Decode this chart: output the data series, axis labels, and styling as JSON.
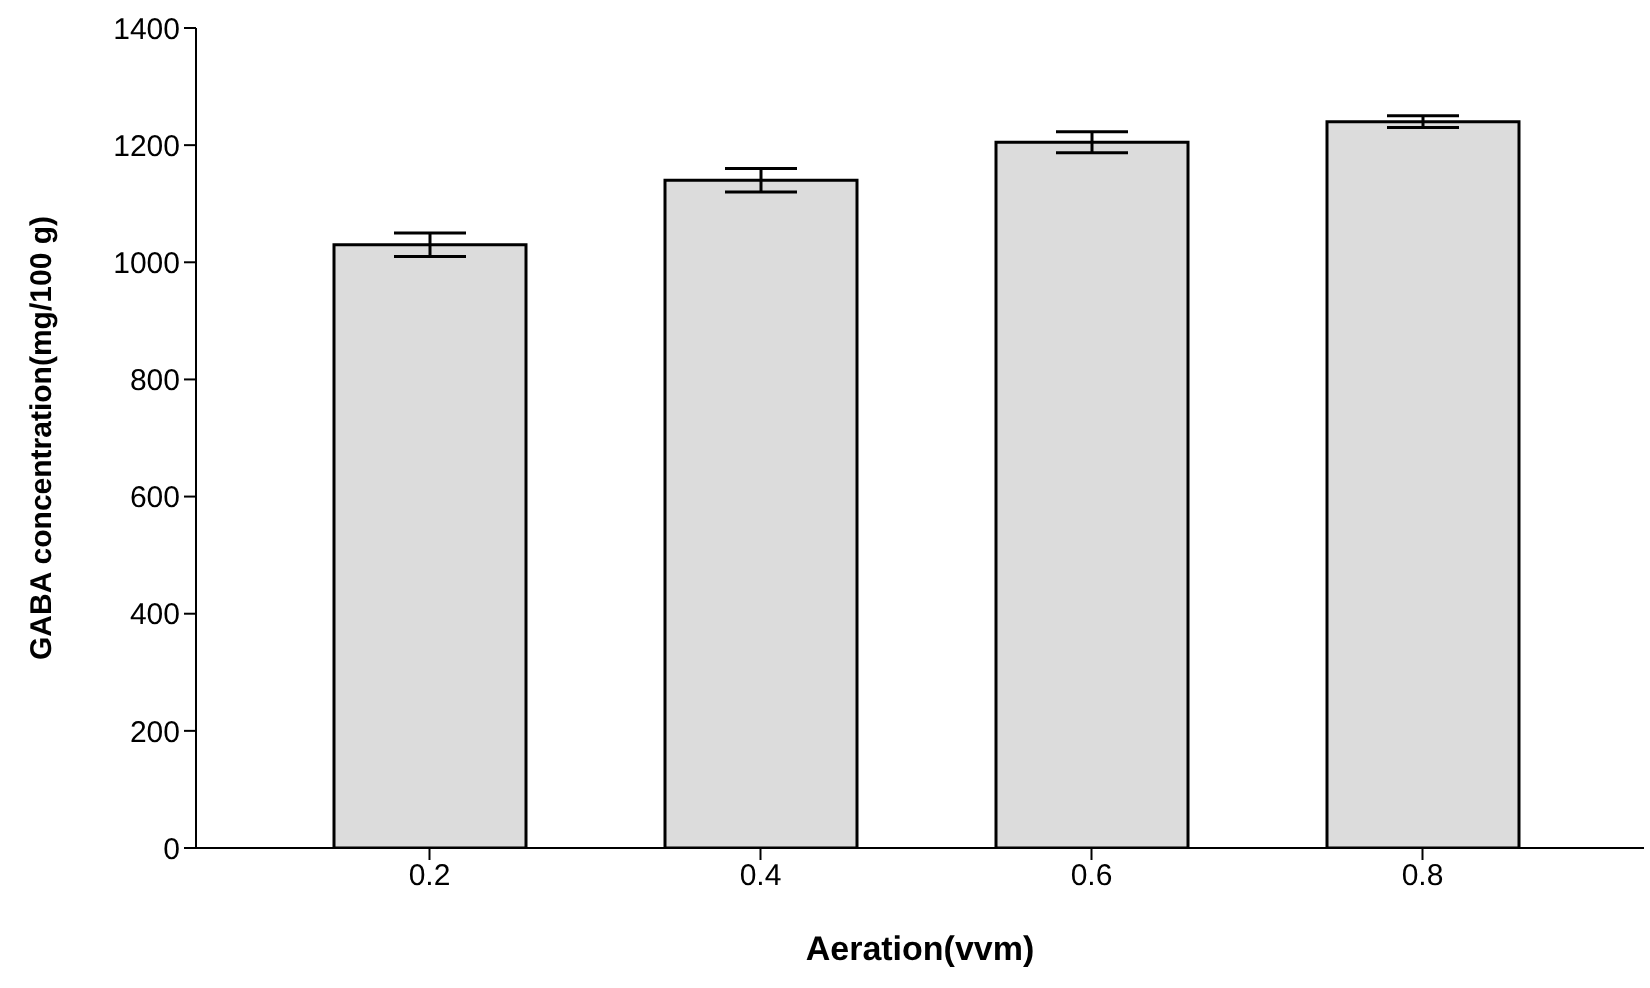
{
  "chart_data": {
    "type": "bar",
    "xlabel": "Aeration(vvm)",
    "ylabel": "GABA concentration(mg/100 g)",
    "categories": [
      "0.2",
      "0.4",
      "0.6",
      "0.8"
    ],
    "values": [
      1030,
      1140,
      1205,
      1240
    ],
    "errors": [
      20,
      20,
      18,
      10
    ],
    "color": "#dcdcdc",
    "ylim": [
      0,
      1400
    ],
    "yticks": [
      0,
      200,
      400,
      600,
      800,
      1000,
      1200,
      1400
    ],
    "grid": false,
    "legend": false
  }
}
